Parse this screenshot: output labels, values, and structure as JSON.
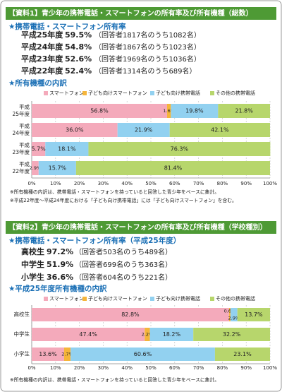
{
  "sections": [
    {
      "header": "【資料1】青少年の携帯電話・スマートフォンの所有率及び所有機種（総数）",
      "rate_heading": "★携帯電話・スマートフォン所有率",
      "rates": [
        {
          "label": "平成25年度",
          "rate": "59.5%",
          "note": "（回答者1817名のうち1082名）"
        },
        {
          "label": "平成24年度",
          "rate": "54.8%",
          "note": "（回答者1867名のうち1023名）"
        },
        {
          "label": "平成23年度",
          "rate": "52.6%",
          "note": "（回答者1969名のうち1036名）"
        },
        {
          "label": "平成22年度",
          "rate": "52.4%",
          "note": "（回答者1314名のうち689名）"
        }
      ],
      "breakdown_heading": "★所有機種の内訳",
      "notes": [
        "※所有機種の内訳は、携帯電話・スマートフォンを持っていると回答した青少年をベースに集計。",
        "※平成22年度〜平成24年度における「子ども向け携帯電話」には「子ども向けスマートフォン」を含む。"
      ]
    },
    {
      "header": "【資料2】青少年の携帯電話・スマートフォンの所有率及び所有機種（学校種別）",
      "rate_heading": "★携帯電話・スマートフォン所有率（平成25年度）",
      "rates": [
        {
          "label": "高校生",
          "rate": "97.2%",
          "note": "（回答者503名のうち489名）"
        },
        {
          "label": "中学生",
          "rate": "51.9%",
          "note": "（回答者699名のうち363名）"
        },
        {
          "label": "小学生",
          "rate": "36.6%",
          "note": "（回答者604名のうち221名）"
        }
      ],
      "breakdown_heading": "★平成25年度所有機種の内訳",
      "notes": [
        "※所有機種の内訳は、携帯電話・スマートフォンを持っていると回答した青少年をベースに集計。"
      ]
    }
  ],
  "chart_data": [
    {
      "type": "stacked-barh",
      "categories": [
        "平成25年度",
        "平成24年度",
        "平成23年度",
        "平成22年度"
      ],
      "series": [
        {
          "name": "スマートフォン",
          "color": "#f4aabb",
          "values": [
            56.8,
            36.0,
            5.7,
            2.9
          ],
          "value_labels": [
            "56.8%",
            "36.0%",
            "5.7%",
            "2.9%"
          ]
        },
        {
          "name": "子ども向けスマートフォン",
          "color": "#f5b53a",
          "values": [
            1.6,
            null,
            null,
            null
          ],
          "value_labels": [
            "1.6%",
            null,
            null,
            null
          ]
        },
        {
          "name": "子ども向け携帯電話",
          "color": "#92d1f0",
          "values": [
            19.8,
            21.9,
            18.1,
            15.7
          ],
          "value_labels": [
            "19.8%",
            "21.9%",
            "18.1%",
            "15.7%"
          ]
        },
        {
          "name": "その他の携帯電話",
          "color": "#b7d66c",
          "values": [
            21.8,
            42.1,
            76.3,
            81.4
          ],
          "value_labels": [
            "21.8%",
            "42.1%",
            "76.3%",
            "81.4%"
          ]
        }
      ],
      "xlim": [
        0,
        100
      ],
      "xticks": [
        {
          "value": 0,
          "label": "0%"
        },
        {
          "value": 10,
          "label": "10%"
        },
        {
          "value": 20,
          "label": "20%"
        },
        {
          "value": 30,
          "label": "30%"
        },
        {
          "value": 40,
          "label": "40%"
        },
        {
          "value": 50,
          "label": "50%"
        },
        {
          "value": 60,
          "label": "60%"
        },
        {
          "value": 70,
          "label": "70%"
        },
        {
          "value": 80,
          "label": "80%"
        },
        {
          "value": 90,
          "label": "90%"
        },
        {
          "value": 100,
          "label": "100%"
        }
      ],
      "grid": true
    },
    {
      "type": "stacked-barh",
      "categories": [
        "高校生",
        "中学生",
        "小学生"
      ],
      "series": [
        {
          "name": "スマートフォン",
          "color": "#f4aabb",
          "values": [
            82.8,
            47.4,
            13.6
          ],
          "value_labels": [
            "82.8%",
            "47.4%",
            "13.6%"
          ]
        },
        {
          "name": "子ども向けスマートフォン",
          "color": "#f5b53a",
          "values": [
            0.6,
            2.2,
            2.7
          ],
          "value_labels": [
            "0.6%",
            "2.2%",
            "2.7%"
          ]
        },
        {
          "name": "子ども向け携帯電話",
          "color": "#92d1f0",
          "values": [
            2.9,
            18.2,
            60.6
          ],
          "value_labels": [
            "2.9%",
            "18.2%",
            "60.6%"
          ]
        },
        {
          "name": "その他の携帯電話",
          "color": "#b7d66c",
          "values": [
            13.7,
            32.2,
            23.1
          ],
          "value_labels": [
            "13.7%",
            "32.2%",
            "23.1%"
          ]
        }
      ],
      "xlim": [
        0,
        100
      ],
      "xticks": [
        {
          "value": 0,
          "label": "0%"
        },
        {
          "value": 10,
          "label": "10%"
        },
        {
          "value": 20,
          "label": "20%"
        },
        {
          "value": 30,
          "label": "30%"
        },
        {
          "value": 40,
          "label": "40%"
        },
        {
          "value": 50,
          "label": "50%"
        },
        {
          "value": 60,
          "label": "60%"
        },
        {
          "value": 70,
          "label": "70%"
        },
        {
          "value": 80,
          "label": "80%"
        },
        {
          "value": 90,
          "label": "90%"
        },
        {
          "value": 100,
          "label": "100%"
        }
      ],
      "grid": true
    }
  ]
}
